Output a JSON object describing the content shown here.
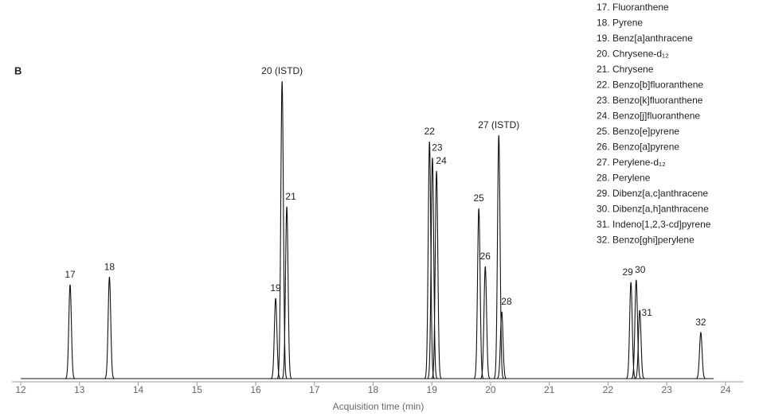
{
  "panel_label": "B",
  "chart_data": {
    "type": "peaks",
    "x_label": "Acquisition time (min)",
    "xlim": [
      11.85,
      24.3
    ],
    "xticks": [
      12,
      13,
      14,
      15,
      16,
      17,
      18,
      19,
      20,
      21,
      22,
      23,
      24
    ],
    "ylim": [
      0,
      100
    ],
    "color": "#111111",
    "labels": [
      "17",
      "18",
      "19",
      "20 (ISTD)",
      "21",
      "22",
      "23",
      "24",
      "25",
      "26",
      "27 (ISTD)",
      "28",
      "29",
      "30",
      "31",
      "32"
    ],
    "x": [
      12.84,
      13.51,
      16.34,
      16.45,
      16.53,
      18.96,
      19.01,
      19.08,
      19.8,
      19.91,
      20.14,
      20.19,
      22.39,
      22.48,
      22.54,
      23.58
    ],
    "values": [
      31.6,
      34.2,
      27,
      100,
      57.8,
      79.7,
      74.3,
      69.8,
      57.2,
      37.7,
      81.8,
      22.5,
      32.4,
      33.2,
      23,
      15.5
    ],
    "legend": [
      "17. Fluoranthene",
      "18. Pyrene",
      "19. Benz[a]anthracene",
      "20. Chrysene-d₁₂",
      "21. Chrysene",
      "22. Benzo[b]fluoranthene",
      "23. Benzo[k]fluoranthene",
      "24. Benzo[j]fluoranthene",
      "25. Benzo[e]pyrene",
      "26. Benzo[a]pyrene",
      "27. Perylene-d₁₂",
      "28. Perylene",
      "29. Dibenz[a,c]anthracene",
      "30. Dibenz[a,h]anthracene",
      "31. Indeno[1,2,3-cd]pyrene",
      "32. Benzo[ghi]perylene"
    ]
  }
}
